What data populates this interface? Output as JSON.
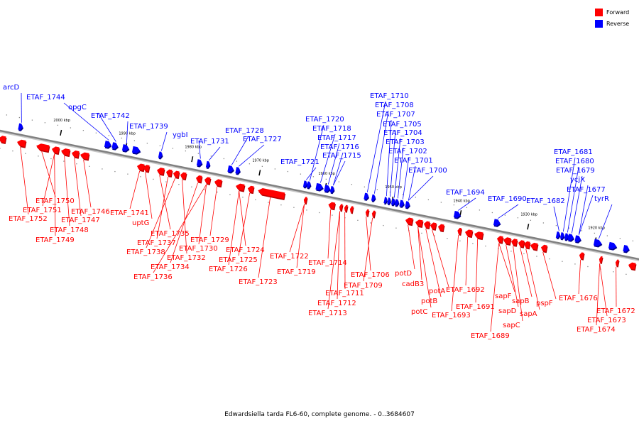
{
  "title": "Edwardsiella tarda FL6-60, complete genome. - 0..3684607",
  "legend": [
    {
      "label": "Forward",
      "color": "#ff0000"
    },
    {
      "label": "Reverse",
      "color": "#0000ff"
    }
  ],
  "colors": {
    "forward": "#ff0000",
    "reverse": "#0000ff",
    "backbone": "#808080"
  },
  "backbone": {
    "start_kbp": 2010,
    "end_kbp": 1917,
    "direction": "decreasing"
  },
  "tick_labels": [
    {
      "kbp": 2000,
      "text": "2000 kbp"
    },
    {
      "kbp": 1990,
      "text": "1990 kbp"
    },
    {
      "kbp": 1980,
      "text": "1980 kbp"
    },
    {
      "kbp": 1970,
      "text": "1970 kbp"
    },
    {
      "kbp": 1960,
      "text": "1960 kbp"
    },
    {
      "kbp": 1950,
      "text": "1950 kbp"
    },
    {
      "kbp": 1940,
      "text": "1940 kbp"
    },
    {
      "kbp": 1930,
      "text": "1930 kbp"
    },
    {
      "kbp": 1920,
      "text": "1920 kbp"
    }
  ],
  "reverse_genes": [
    {
      "name": "arcD"
    },
    {
      "name": "ETAF_1744"
    },
    {
      "name": "opgC"
    },
    {
      "name": "ETAF_1742"
    },
    {
      "name": "ETAF_1739"
    },
    {
      "name": "ygbI"
    },
    {
      "name": "ETAF_1731"
    },
    {
      "name": "ETAF_1728"
    },
    {
      "name": "ETAF_1727"
    },
    {
      "name": "ETAF_1721"
    },
    {
      "name": "ETAF_1720"
    },
    {
      "name": "ETAF_1718"
    },
    {
      "name": "ETAF_1717"
    },
    {
      "name": "ETAF_1716"
    },
    {
      "name": "ETAF_1715"
    },
    {
      "name": "ETAF_1710"
    },
    {
      "name": "ETAF_1708"
    },
    {
      "name": "ETAF_1707"
    },
    {
      "name": "ETAF_1705"
    },
    {
      "name": "ETAF_1704"
    },
    {
      "name": "ETAF_1703"
    },
    {
      "name": "ETAF_1702"
    },
    {
      "name": "ETAF_1701"
    },
    {
      "name": "ETAF_1700"
    },
    {
      "name": "ETAF_1694"
    },
    {
      "name": "ETAF_1690"
    },
    {
      "name": "ETAF_1682"
    },
    {
      "name": "ETAF_1681"
    },
    {
      "name": "ETAF_1680"
    },
    {
      "name": "ETAF_1679"
    },
    {
      "name": "ycjX"
    },
    {
      "name": "ETAF_1677"
    },
    {
      "name": "tyrR"
    }
  ],
  "forward_genes": [
    {
      "name": "ETAF_1750"
    },
    {
      "name": "ETAF_1751"
    },
    {
      "name": "ETAF_1752"
    },
    {
      "name": "ETAF_1746"
    },
    {
      "name": "ETAF_1747"
    },
    {
      "name": "ETAF_1748"
    },
    {
      "name": "ETAF_1749"
    },
    {
      "name": "ETAF_1741"
    },
    {
      "name": "uptG"
    },
    {
      "name": "ETAF_1735"
    },
    {
      "name": "ETAF_1737"
    },
    {
      "name": "ETAF_1738"
    },
    {
      "name": "ETAF_1732"
    },
    {
      "name": "ETAF_1734"
    },
    {
      "name": "ETAF_1736"
    },
    {
      "name": "ETAF_1729"
    },
    {
      "name": "ETAF_1730"
    },
    {
      "name": "ETAF_1724"
    },
    {
      "name": "ETAF_1725"
    },
    {
      "name": "ETAF_1726"
    },
    {
      "name": "ETAF_1723"
    },
    {
      "name": "ETAF_1722"
    },
    {
      "name": "ETAF_1719"
    },
    {
      "name": "ETAF_1714"
    },
    {
      "name": "ETAF_1711"
    },
    {
      "name": "ETAF_1712"
    },
    {
      "name": "ETAF_1713"
    },
    {
      "name": "ETAF_1706"
    },
    {
      "name": "ETAF_1709"
    },
    {
      "name": "potD"
    },
    {
      "name": "cadB3"
    },
    {
      "name": "potA"
    },
    {
      "name": "potB"
    },
    {
      "name": "potC"
    },
    {
      "name": "ETAF_1692"
    },
    {
      "name": "ETAF_1691"
    },
    {
      "name": "ETAF_1693"
    },
    {
      "name": "sapF"
    },
    {
      "name": "sapD"
    },
    {
      "name": "sapB"
    },
    {
      "name": "sapA"
    },
    {
      "name": "sapC"
    },
    {
      "name": "pspF"
    },
    {
      "name": "ETAF_1689"
    },
    {
      "name": "ETAF_1676"
    },
    {
      "name": "ETAF_1672"
    },
    {
      "name": "ETAF_1673"
    },
    {
      "name": "ETAF_1674"
    }
  ]
}
